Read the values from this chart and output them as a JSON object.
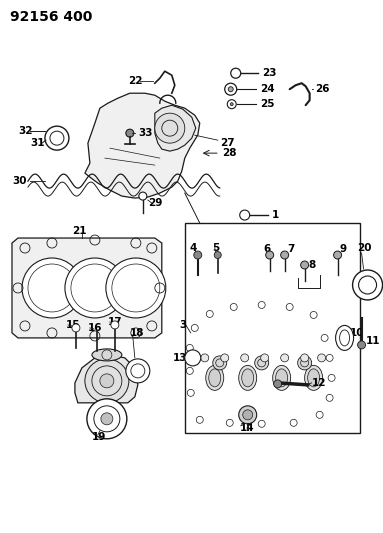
{
  "title": "92156 400",
  "bg_color": "#ffffff",
  "line_color": "#1a1a1a",
  "fig_width": 3.83,
  "fig_height": 5.33,
  "dpi": 100,
  "label_fontsize": 7.5,
  "title_fontsize": 10
}
